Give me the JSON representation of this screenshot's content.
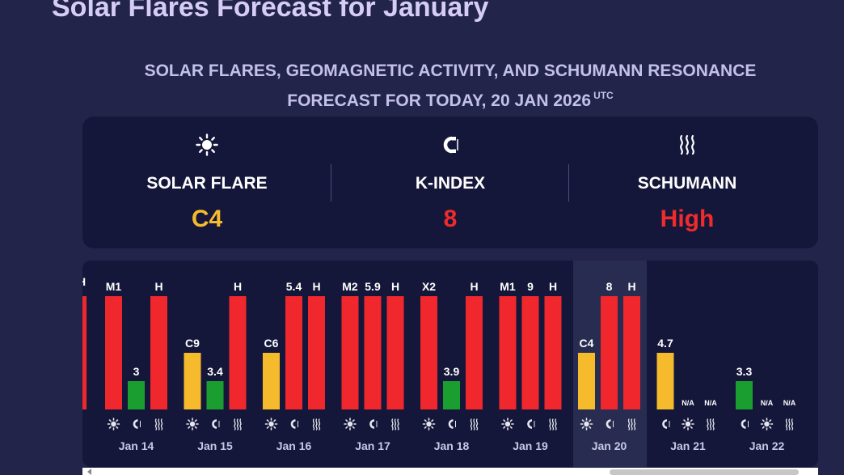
{
  "page": {
    "title": "Solar Flares Forecast for January",
    "subtitle_line1": "SOLAR FLARES, GEOMAGNETIC ACTIVITY, AND SCHUMANN RESONANCE",
    "subtitle_line2": "FORECAST FOR TODAY, 20 JAN 2026",
    "subtitle_sup": "UTC"
  },
  "summary": [
    {
      "icon": "sun-icon",
      "label": "SOLAR FLARE",
      "value": "C4",
      "color": "#f5bb2d"
    },
    {
      "icon": "magnet-icon",
      "label": "K-INDEX",
      "value": "8",
      "color": "#f02b2b"
    },
    {
      "icon": "waves-icon",
      "label": "SCHUMANN",
      "value": "High",
      "color": "#f02b2b"
    }
  ],
  "colors": {
    "red": "#f0282d",
    "yellow": "#f5bb2d",
    "green": "#1a9e30",
    "icon": "#e6e6ee"
  },
  "chart_data": {
    "type": "bar",
    "today": "Jan 20",
    "partial_left_labels": [
      "H"
    ],
    "days": [
      {
        "date": "Jan 14",
        "bars": [
          {
            "kind": "solar",
            "label": "M1",
            "level": 1.0,
            "color": "red"
          },
          {
            "kind": "kindex",
            "label": "3",
            "level": 0.25,
            "color": "green"
          },
          {
            "kind": "schumann",
            "label": "H",
            "level": 1.0,
            "color": "red"
          }
        ]
      },
      {
        "date": "Jan 15",
        "bars": [
          {
            "kind": "solar",
            "label": "C9",
            "level": 0.5,
            "color": "yellow"
          },
          {
            "kind": "kindex",
            "label": "3.4",
            "level": 0.25,
            "color": "green"
          },
          {
            "kind": "schumann",
            "label": "H",
            "level": 1.0,
            "color": "red"
          }
        ]
      },
      {
        "date": "Jan 16",
        "bars": [
          {
            "kind": "solar",
            "label": "C6",
            "level": 0.5,
            "color": "yellow"
          },
          {
            "kind": "kindex",
            "label": "5.4",
            "level": 1.0,
            "color": "red"
          },
          {
            "kind": "schumann",
            "label": "H",
            "level": 1.0,
            "color": "red"
          }
        ]
      },
      {
        "date": "Jan 17",
        "bars": [
          {
            "kind": "solar",
            "label": "M2",
            "level": 1.0,
            "color": "red"
          },
          {
            "kind": "kindex",
            "label": "5.9",
            "level": 1.0,
            "color": "red"
          },
          {
            "kind": "schumann",
            "label": "H",
            "level": 1.0,
            "color": "red"
          }
        ]
      },
      {
        "date": "Jan 18",
        "bars": [
          {
            "kind": "solar",
            "label": "X2",
            "level": 1.0,
            "color": "red"
          },
          {
            "kind": "kindex",
            "label": "3.9",
            "level": 0.25,
            "color": "green"
          },
          {
            "kind": "schumann",
            "label": "H",
            "level": 1.0,
            "color": "red"
          }
        ]
      },
      {
        "date": "Jan 19",
        "bars": [
          {
            "kind": "solar",
            "label": "M1",
            "level": 1.0,
            "color": "red"
          },
          {
            "kind": "kindex",
            "label": "9",
            "level": 1.0,
            "color": "red"
          },
          {
            "kind": "schumann",
            "label": "H",
            "level": 1.0,
            "color": "red"
          }
        ]
      },
      {
        "date": "Jan 20",
        "bars": [
          {
            "kind": "solar",
            "label": "C4",
            "level": 0.5,
            "color": "yellow"
          },
          {
            "kind": "kindex",
            "label": "8",
            "level": 1.0,
            "color": "red"
          },
          {
            "kind": "schumann",
            "label": "H",
            "level": 1.0,
            "color": "red"
          }
        ]
      },
      {
        "date": "Jan 21",
        "bars": [
          {
            "kind": "kindex",
            "label": "4.7",
            "level": 0.5,
            "color": "yellow"
          },
          {
            "kind": "solar",
            "label": "N/A",
            "level": 0,
            "color": "none"
          },
          {
            "kind": "schumann",
            "label": "N/A",
            "level": 0,
            "color": "none"
          }
        ]
      },
      {
        "date": "Jan 22",
        "bars": [
          {
            "kind": "kindex",
            "label": "3.3",
            "level": 0.25,
            "color": "green"
          },
          {
            "kind": "solar",
            "label": "N/A",
            "level": 0,
            "color": "none"
          },
          {
            "kind": "schumann",
            "label": "N/A",
            "level": 0,
            "color": "none"
          }
        ]
      }
    ]
  }
}
